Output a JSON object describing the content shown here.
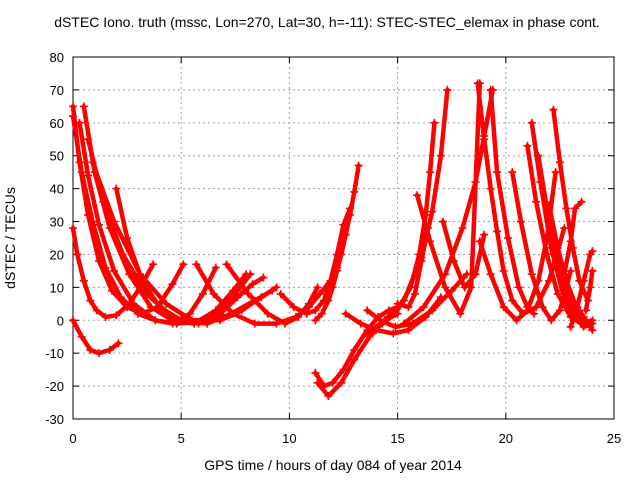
{
  "chart_data": {
    "type": "scatter",
    "title": "dSTEC Iono. truth (mssc, Lon=270, Lat=30, h=-11): STEC-STEC_elemax in phase cont.",
    "xlabel": "GPS time / hours of day 084 of year 2014",
    "ylabel": "dSTEC  / TECUs",
    "xlim": [
      0,
      25
    ],
    "ylim": [
      -30,
      80
    ],
    "xticks": [
      0,
      5,
      10,
      15,
      20,
      25
    ],
    "yticks": [
      -30,
      -20,
      -10,
      0,
      10,
      20,
      30,
      40,
      50,
      60,
      70,
      80
    ],
    "grid": true,
    "marker": "+",
    "color": "#ff0000",
    "series": [
      {
        "x": [
          0.0,
          0.2,
          0.5,
          0.8,
          1.1,
          1.5,
          2.0,
          2.6,
          3.2,
          3.7
        ],
        "y": [
          28,
          20,
          12,
          6,
          3,
          1,
          1.5,
          5,
          11,
          17
        ]
      },
      {
        "x": [
          0.0,
          0.3,
          0.7,
          1.2,
          1.8,
          2.5,
          3.2,
          3.9,
          4.6,
          5.1
        ],
        "y": [
          65,
          48,
          32,
          18,
          9,
          4,
          2,
          4,
          11,
          17
        ]
      },
      {
        "x": [
          0.0,
          0.4,
          0.9,
          1.5,
          2.2,
          3.0,
          3.8,
          4.6,
          5.4,
          6.0,
          6.6
        ],
        "y": [
          62,
          45,
          30,
          16,
          7,
          2,
          0,
          -1,
          2,
          8,
          16
        ]
      },
      {
        "x": [
          0.3,
          0.7,
          1.2,
          1.9,
          2.8,
          3.8,
          4.8,
          5.8,
          6.8,
          7.6,
          8.2
        ],
        "y": [
          60,
          44,
          29,
          15,
          5,
          0,
          -1,
          -0.5,
          3,
          9,
          14
        ]
      },
      {
        "x": [
          0.5,
          1.0,
          1.7,
          2.6,
          3.6,
          4.6,
          5.6,
          6.6,
          7.4,
          8.0
        ],
        "y": [
          65,
          45,
          28,
          14,
          4,
          0,
          -1,
          3,
          9,
          14
        ]
      },
      {
        "x": [
          0.7,
          1.4,
          2.3,
          3.4,
          4.6,
          5.8,
          6.8,
          7.6,
          8.3,
          8.8
        ],
        "y": [
          55,
          36,
          20,
          8,
          1,
          -1,
          2,
          7,
          11,
          13
        ]
      },
      {
        "x": [
          0.9,
          1.9,
          3.1,
          4.3,
          5.5,
          6.8,
          7.8,
          8.7,
          9.4
        ],
        "y": [
          48,
          30,
          14,
          5,
          0,
          0,
          3,
          7,
          10
        ]
      },
      {
        "x": [
          0.0,
          0.4,
          0.8,
          1.2,
          1.7,
          2.1
        ],
        "y": [
          0,
          -5,
          -9,
          -10,
          -9,
          -7
        ]
      },
      {
        "x": [
          2.0,
          2.5,
          3.2,
          4.0,
          5.0,
          6.2,
          7.3,
          8.4,
          9.2
        ],
        "y": [
          40,
          25,
          12,
          4,
          0,
          -1,
          2,
          6,
          9
        ]
      },
      {
        "x": [
          5.7,
          6.5,
          7.4,
          8.4,
          9.4,
          10.3,
          10.9,
          11.4,
          11.9,
          12.2
        ],
        "y": [
          17,
          8,
          2,
          -1,
          -1,
          1,
          4,
          8,
          12,
          16
        ]
      },
      {
        "x": [
          7.1,
          8.1,
          9.0,
          9.8,
          10.4,
          10.9,
          11.3
        ],
        "y": [
          17,
          8,
          2,
          -1,
          1,
          5,
          10
        ]
      },
      {
        "x": [
          9.6,
          10.2,
          10.8,
          11.2,
          11.6,
          11.9,
          12.2,
          12.5,
          12.8
        ],
        "y": [
          8,
          4,
          2,
          3,
          6,
          12,
          20,
          29,
          34
        ]
      },
      {
        "x": [
          11.2,
          11.5,
          11.8,
          12.0,
          12.2,
          12.4,
          12.6,
          12.8,
          13.0,
          13.2
        ],
        "y": [
          0,
          2,
          6,
          10,
          15,
          20,
          26,
          32,
          39,
          47
        ]
      },
      {
        "x": [
          11.2,
          11.6,
          12.0,
          12.5,
          13.0,
          13.6,
          14.1,
          14.6,
          15.0
        ],
        "y": [
          -16,
          -20,
          -19,
          -15,
          -9,
          -3,
          1,
          3,
          4
        ]
      },
      {
        "x": [
          11.3,
          11.8,
          12.4,
          13.0,
          13.7,
          14.4,
          15.0
        ],
        "y": [
          -19,
          -23,
          -19,
          -12,
          -5,
          0,
          2
        ]
      },
      {
        "x": [
          12.6,
          13.3,
          14.0,
          14.8,
          15.5,
          16.3,
          17.0
        ],
        "y": [
          2,
          -1,
          -3,
          -4,
          -3,
          1,
          7
        ]
      },
      {
        "x": [
          13.6,
          14.2,
          14.9,
          15.7,
          16.6,
          17.5,
          18.2
        ],
        "y": [
          3,
          0,
          -2,
          -1,
          3,
          9,
          14
        ]
      },
      {
        "x": [
          13.6,
          14.4,
          15.3,
          16.1,
          16.6,
          17.0,
          17.3
        ],
        "y": [
          -4,
          0,
          6,
          19,
          33,
          50,
          70
        ]
      },
      {
        "x": [
          14.3,
          14.9,
          15.6,
          16.0,
          16.3,
          16.5,
          16.7
        ],
        "y": [
          -1,
          2,
          10,
          20,
          32,
          45,
          60
        ]
      },
      {
        "x": [
          15.0,
          15.5,
          15.8,
          16.1,
          16.4
        ],
        "y": [
          5,
          4,
          8,
          18,
          28
        ]
      },
      {
        "x": [
          15.3,
          16.2,
          17.2,
          18.0,
          18.6,
          19.0,
          19.4
        ],
        "y": [
          -1,
          4,
          14,
          28,
          42,
          56,
          70
        ]
      },
      {
        "x": [
          15.9,
          16.5,
          17.2,
          17.9,
          18.4,
          18.8
        ],
        "y": [
          38,
          24,
          10,
          2,
          10,
          72
        ]
      },
      {
        "x": [
          17.1,
          17.6,
          18.1,
          18.6,
          19.0
        ],
        "y": [
          30,
          18,
          10,
          14,
          26
        ]
      },
      {
        "x": [
          18.7,
          19.0,
          19.3,
          19.6,
          19.9,
          20.3,
          20.8,
          21.4,
          22.0,
          22.7
        ],
        "y": [
          72,
          55,
          40,
          27,
          15,
          6,
          2,
          4,
          12,
          28
        ]
      },
      {
        "x": [
          18.8,
          19.3,
          19.9,
          20.5,
          21.0,
          21.5,
          21.9,
          22.3
        ],
        "y": [
          24,
          14,
          4,
          0,
          3,
          12,
          25,
          45
        ]
      },
      {
        "x": [
          19.3,
          19.6,
          20.1,
          20.6,
          21.0,
          21.3
        ],
        "y": [
          70,
          45,
          25,
          10,
          4,
          2
        ]
      },
      {
        "x": [
          20.3,
          20.7,
          21.2,
          21.7,
          22.1,
          22.5,
          23.0
        ],
        "y": [
          45,
          30,
          14,
          4,
          0,
          3,
          15
        ]
      },
      {
        "x": [
          21.0,
          21.4,
          21.9,
          22.4,
          23.0,
          23.5,
          24.0
        ],
        "y": [
          53,
          36,
          20,
          8,
          1,
          -1,
          0
        ]
      },
      {
        "x": [
          21.2,
          21.6,
          22.1,
          22.6,
          23.1,
          23.6,
          24.0
        ],
        "y": [
          60,
          42,
          22,
          9,
          2,
          -2,
          -1
        ]
      },
      {
        "x": [
          21.5,
          21.9,
          22.4,
          22.9,
          23.4,
          23.9
        ],
        "y": [
          50,
          34,
          18,
          7,
          1,
          -2
        ]
      },
      {
        "x": [
          22.0,
          22.4,
          22.8,
          23.2,
          23.6,
          24.0
        ],
        "y": [
          35,
          22,
          12,
          5,
          1,
          -3
        ]
      },
      {
        "x": [
          22.2,
          22.5,
          22.8,
          23.1,
          23.4,
          23.8
        ],
        "y": [
          64,
          48,
          34,
          22,
          12,
          6
        ]
      },
      {
        "x": [
          23.0,
          23.3,
          23.6,
          23.9,
          24.0
        ],
        "y": [
          -2,
          4,
          12,
          20,
          21
        ]
      },
      {
        "x": [
          22.7,
          23.0,
          23.2,
          23.5
        ],
        "y": [
          14,
          24,
          34,
          36
        ]
      },
      {
        "x": [
          23.7,
          23.9,
          24.0
        ],
        "y": [
          3,
          10,
          15
        ]
      }
    ]
  }
}
